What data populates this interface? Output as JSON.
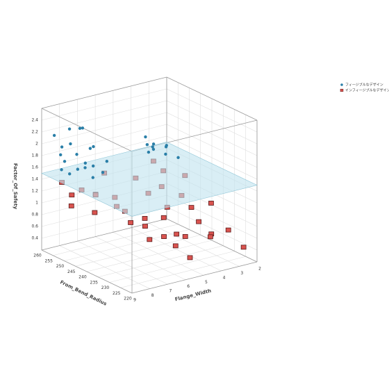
{
  "chart_data": {
    "type": "scatter3d",
    "xlabel": "From_Bend_Radius",
    "ylabel": "Flange_Width",
    "zlabel": "Factor_Of_Safety",
    "xlim": [
      220,
      260
    ],
    "xticks": [
      220,
      225,
      230,
      235,
      240,
      245,
      250,
      255,
      260
    ],
    "ylim": [
      2,
      9
    ],
    "yticks": [
      2,
      3,
      4,
      5,
      6,
      7,
      8,
      9
    ],
    "zlim": [
      0.2,
      2.6
    ],
    "zticks": [
      0.4,
      0.6,
      0.8,
      1,
      1.2,
      1.4,
      1.6,
      1.8,
      2,
      2.2,
      2.4
    ],
    "plane_z": 1.5,
    "plane_color": "#bfe3ee",
    "grid": true,
    "series": [
      {
        "name": "フィージブルなデザイン",
        "color": "#2a7fa8",
        "x": [
          256,
          255,
          254,
          254,
          253,
          252,
          252,
          251,
          250,
          250,
          249,
          248,
          248,
          247,
          246,
          245,
          244,
          243,
          255,
          253,
          252,
          254,
          251,
          250,
          256,
          249,
          253,
          247,
          252,
          250
        ],
        "y": [
          8.8,
          8.5,
          8.7,
          8.2,
          8.6,
          8.4,
          8.9,
          8.0,
          8.3,
          8.7,
          8.1,
          8.5,
          7.8,
          8.2,
          7.9,
          8.0,
          7.6,
          7.5,
          7.2,
          7.0,
          3.8,
          3.5,
          3.2,
          4.0,
          3.6,
          3.4,
          3.9,
          3.0,
          4.2,
          3.3
        ],
        "z": [
          2.2,
          2.0,
          1.9,
          2.3,
          1.8,
          2.1,
          1.7,
          2.35,
          1.95,
          1.65,
          2.4,
          1.75,
          2.05,
          1.85,
          1.6,
          2.15,
          1.7,
          1.9,
          1.55,
          1.6,
          1.7,
          1.6,
          1.55,
          1.8,
          1.65,
          1.75,
          1.6,
          1.55,
          1.9,
          1.7
        ]
      },
      {
        "name": "インフィージブルなデザイン",
        "color": "#d9534f",
        "x": [
          255,
          253,
          251,
          250,
          248,
          246,
          244,
          241,
          238,
          235,
          232,
          230,
          228,
          226,
          224,
          222,
          250,
          246,
          240,
          236,
          230,
          226,
          254,
          252,
          248,
          244,
          238,
          234,
          228,
          224,
          256,
          242,
          232,
          222,
          245,
          236
        ],
        "y": [
          8.5,
          8.2,
          7.9,
          8.6,
          7.5,
          7.8,
          8.0,
          7.2,
          6.8,
          7.5,
          6.5,
          7.0,
          6.2,
          5.8,
          6.0,
          5.5,
          5.0,
          4.8,
          4.5,
          4.2,
          4.0,
          3.8,
          3.5,
          3.2,
          3.8,
          3.0,
          3.4,
          2.8,
          3.6,
          3.1,
          6.0,
          5.5,
          4.5,
          2.5,
          6.8,
          5.2
        ],
        "z": [
          1.4,
          1.2,
          1.3,
          1.1,
          1.25,
          1.0,
          1.35,
          1.15,
          0.9,
          1.2,
          0.7,
          1.0,
          0.8,
          0.65,
          0.9,
          0.5,
          1.3,
          1.1,
          0.95,
          1.2,
          0.85,
          0.7,
          1.4,
          1.25,
          1.1,
          1.3,
          0.9,
          1.0,
          0.6,
          0.75,
          1.35,
          0.8,
          0.6,
          0.45,
          1.2,
          0.9
        ]
      }
    ]
  }
}
